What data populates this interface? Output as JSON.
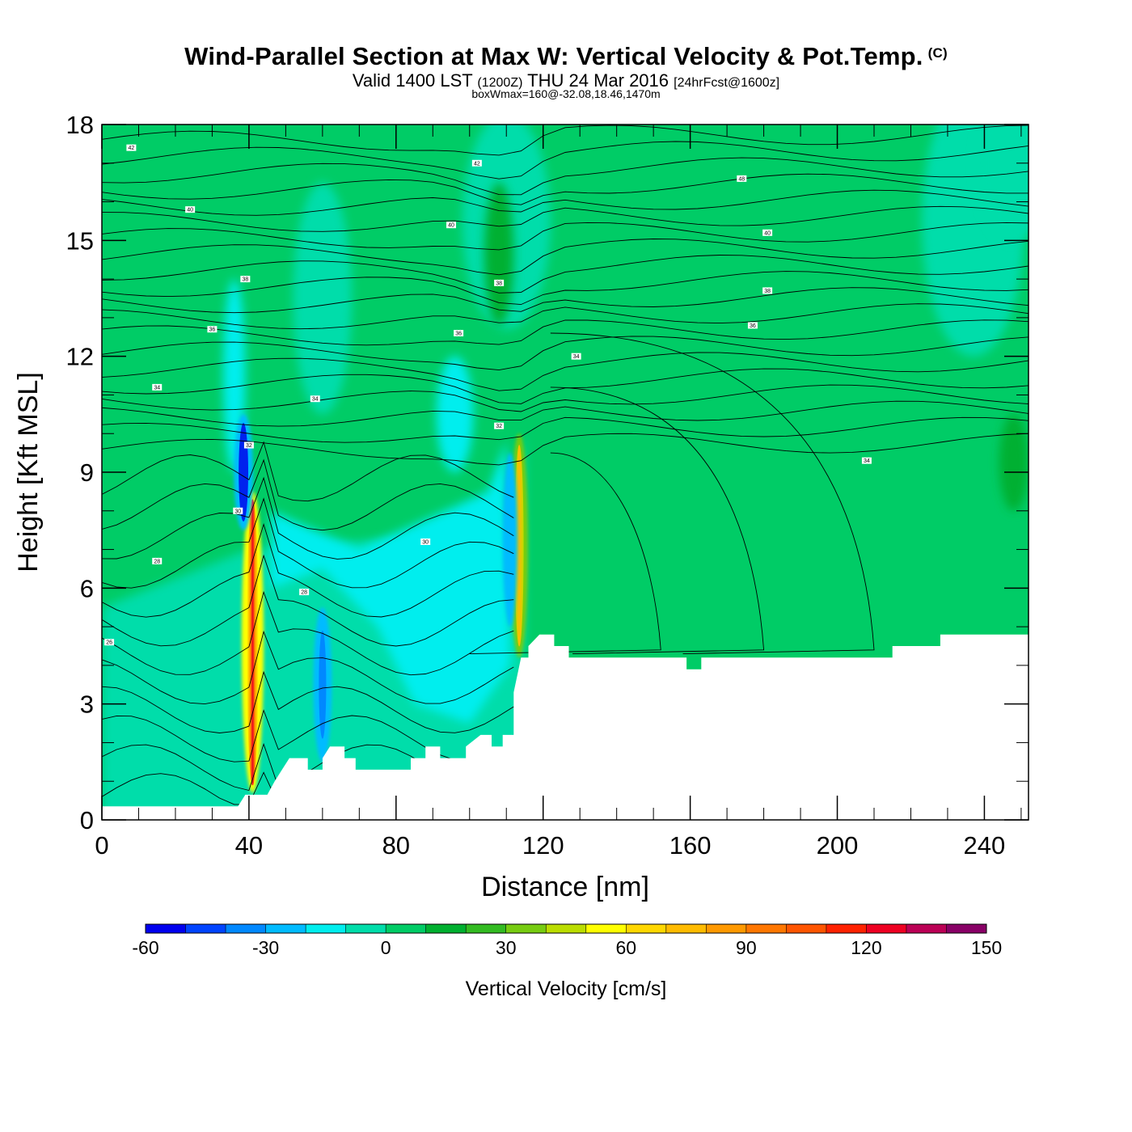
{
  "chart_data": {
    "type": "heatmap",
    "title": "Wind-Parallel Section at Max W: Vertical Velocity & Pot.Temp.",
    "title_mark": "(C)",
    "subtitle": {
      "valid_prefix": "Valid 1400 LST",
      "utc": "(1200Z)",
      "date": "THU 24 Mar 2016",
      "forecast": "[24hrFcst@1600z]"
    },
    "subtitle2": "boxWmax=160@-32.08,18.46,1470m",
    "xlabel": "Distance [nm]",
    "ylabel": "Height [Kft MSL]",
    "xlim": [
      0,
      252
    ],
    "ylim": [
      0,
      18
    ],
    "x_ticks": [
      "0",
      "40",
      "80",
      "120",
      "160",
      "200",
      "240"
    ],
    "y_ticks": [
      "0",
      "3",
      "6",
      "9",
      "12",
      "15",
      "18"
    ],
    "colorbar": {
      "label": "Vertical Velocity [cm/s]",
      "range": [
        -60,
        160
      ],
      "step": 10,
      "tick_labels": [
        "-60",
        "-30",
        "0",
        "30",
        "60",
        "90",
        "120",
        "150"
      ],
      "colors": [
        "#0000ee",
        "#0044ff",
        "#0088ff",
        "#00bbff",
        "#00eeee",
        "#00ddaa",
        "#00cc66",
        "#00b030",
        "#33bb22",
        "#77cc11",
        "#bbdd00",
        "#ffff00",
        "#ffd700",
        "#ffbb00",
        "#ff9900",
        "#ff7700",
        "#ff5500",
        "#ff2200",
        "#ee0022",
        "#bb0055",
        "#880066"
      ]
    },
    "terrain_kft": [
      [
        0,
        0.35
      ],
      [
        37,
        0.35
      ],
      [
        39,
        0.65
      ],
      [
        45,
        0.65
      ],
      [
        47,
        1.0
      ],
      [
        49,
        1.3
      ],
      [
        51,
        1.6
      ],
      [
        56,
        1.6
      ],
      [
        56,
        1.3
      ],
      [
        60,
        1.3
      ],
      [
        60,
        1.6
      ],
      [
        62,
        1.9
      ],
      [
        66,
        1.9
      ],
      [
        66,
        1.6
      ],
      [
        69,
        1.6
      ],
      [
        69,
        1.3
      ],
      [
        84,
        1.3
      ],
      [
        84,
        1.6
      ],
      [
        88,
        1.6
      ],
      [
        88,
        1.9
      ],
      [
        92,
        1.9
      ],
      [
        92,
        1.6
      ],
      [
        99,
        1.6
      ],
      [
        99,
        1.9
      ],
      [
        103,
        2.2
      ],
      [
        106,
        2.2
      ],
      [
        106,
        1.9
      ],
      [
        109,
        1.9
      ],
      [
        109,
        2.2
      ],
      [
        112,
        2.2
      ],
      [
        112,
        3.3
      ],
      [
        114,
        4.2
      ],
      [
        116,
        4.2
      ],
      [
        116,
        4.5
      ],
      [
        119,
        4.8
      ],
      [
        123,
        4.8
      ],
      [
        123,
        4.5
      ],
      [
        127,
        4.5
      ],
      [
        127,
        4.2
      ],
      [
        159,
        4.2
      ],
      [
        159,
        3.9
      ],
      [
        163,
        3.9
      ],
      [
        163,
        4.2
      ],
      [
        215,
        4.2
      ],
      [
        215,
        4.5
      ],
      [
        228,
        4.5
      ],
      [
        228,
        4.8
      ],
      [
        252,
        4.8
      ]
    ],
    "vertical_velocity_features_cm_s": [
      {
        "x": 41,
        "z_range": [
          0.7,
          8.5
        ],
        "peak": 150
      },
      {
        "x": 113.5,
        "z_range": [
          4.2,
          10.0
        ],
        "peak": 100
      },
      {
        "x": 38.5,
        "z_range": [
          7.5,
          10.5
        ],
        "peak": -60
      },
      {
        "x": 60,
        "z_range": [
          1.5,
          5.5
        ],
        "peak": -35
      },
      {
        "x": 111,
        "z_range": [
          5.0,
          9.5
        ],
        "peak": -25
      },
      {
        "x": 108,
        "z_range": [
          12.8,
          16.5
        ],
        "peak": 20
      },
      {
        "x": 248,
        "z_range": [
          8.0,
          10.5
        ],
        "peak": 15
      }
    ],
    "contour_labels": [
      "42",
      "42",
      "48",
      "40",
      "40",
      "40",
      "38",
      "38",
      "38",
      "36",
      "36",
      "36",
      "34",
      "34",
      "34",
      "34",
      "32",
      "32",
      "30",
      "30",
      "28",
      "28",
      "26"
    ]
  }
}
